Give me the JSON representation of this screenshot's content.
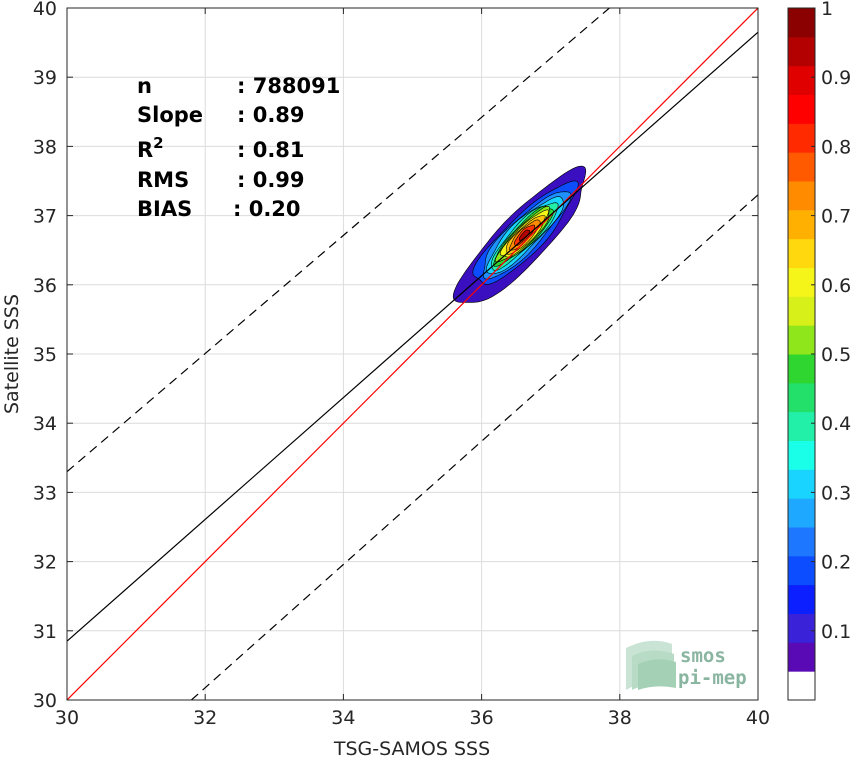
{
  "chart_data": {
    "type": "heatmap",
    "subtype": "2D density contour with regression lines",
    "xlabel": "TSG-SAMOS SSS",
    "ylabel": "Satellite SSS",
    "xlim": [
      30,
      40
    ],
    "ylim": [
      30,
      40
    ],
    "x_ticks": [
      "30",
      "32",
      "34",
      "36",
      "38",
      "40"
    ],
    "y_ticks": [
      "30",
      "31",
      "32",
      "33",
      "34",
      "35",
      "36",
      "37",
      "38",
      "39",
      "40"
    ],
    "grid": true,
    "stats": [
      {
        "label": "n",
        "value": ": 788091"
      },
      {
        "label": "Slope",
        "value": ": 0.89"
      },
      {
        "label": "R",
        "sup": "2",
        "value": ": 0.81"
      },
      {
        "label": "RMS",
        "value": ": 0.99"
      },
      {
        "label": "BIAS",
        "value": ": 0.20"
      }
    ],
    "lines": [
      {
        "kind": "identity",
        "color": "#ff0000",
        "style": "solid",
        "x": [
          30,
          40
        ],
        "y": [
          30,
          40
        ]
      },
      {
        "kind": "regression",
        "color": "#000000",
        "style": "solid",
        "x": [
          30,
          40
        ],
        "y": [
          30.85,
          39.65
        ]
      },
      {
        "kind": "upper-bound",
        "color": "#000000",
        "style": "dashed",
        "x": [
          30,
          37.85
        ],
        "y": [
          33.3,
          40
        ]
      },
      {
        "kind": "lower-bound",
        "color": "#000000",
        "style": "dashed",
        "x": [
          31.8,
          40
        ],
        "y": [
          30,
          37.3
        ]
      }
    ],
    "density": {
      "center": [
        36.62,
        36.72
      ],
      "orientation_deg": 45,
      "levels": [
        {
          "level": 0.05,
          "color": "#3a0fbf",
          "sigma_u": 1.25,
          "sigma_v": 0.34
        },
        {
          "level": 0.15,
          "color": "#0b4dff",
          "sigma_u": 1.0,
          "sigma_v": 0.27
        },
        {
          "level": 0.25,
          "color": "#1e90ff",
          "sigma_u": 0.86,
          "sigma_v": 0.23
        },
        {
          "level": 0.35,
          "color": "#19d4ff",
          "sigma_u": 0.76,
          "sigma_v": 0.2
        },
        {
          "level": 0.45,
          "color": "#23f0a8",
          "sigma_u": 0.66,
          "sigma_v": 0.17
        },
        {
          "level": 0.55,
          "color": "#2fd62f",
          "sigma_u": 0.58,
          "sigma_v": 0.15
        },
        {
          "level": 0.6,
          "color": "#8fe61a",
          "sigma_u": 0.53,
          "sigma_v": 0.135
        },
        {
          "level": 0.65,
          "color": "#f5f51a",
          "sigma_u": 0.46,
          "sigma_v": 0.12
        },
        {
          "level": 0.72,
          "color": "#ffc20d",
          "sigma_u": 0.38,
          "sigma_v": 0.1
        },
        {
          "level": 0.8,
          "color": "#ff8c00",
          "sigma_u": 0.3,
          "sigma_v": 0.08
        },
        {
          "level": 0.88,
          "color": "#ff3300",
          "sigma_u": 0.2,
          "sigma_v": 0.06
        },
        {
          "level": 0.95,
          "color": "#b30000",
          "sigma_u": 0.1,
          "sigma_v": 0.035
        }
      ]
    },
    "colorbar": {
      "range": [
        0,
        1
      ],
      "tick_values": [
        0.1,
        0.2,
        0.3,
        0.4,
        0.5,
        0.6,
        0.7,
        0.8,
        0.9,
        1
      ],
      "tick_labels": [
        "0.1",
        "0.2",
        "0.3",
        "0.4",
        "0.5",
        "0.6",
        "0.7",
        "0.8",
        "0.9",
        "1"
      ],
      "colors": [
        "#ffffff",
        "#5a0ab4",
        "#3a22d8",
        "#0b1fff",
        "#0b4dff",
        "#1e78ff",
        "#1ea8ff",
        "#19d4ff",
        "#19ffe8",
        "#23f0a8",
        "#23e06a",
        "#2fd62f",
        "#8fe61a",
        "#d8f01a",
        "#f5f51a",
        "#ffd80d",
        "#ffb000",
        "#ff8c00",
        "#ff5a00",
        "#ff2a00",
        "#ff0000",
        "#e00000",
        "#b30000",
        "#8b0000"
      ]
    }
  },
  "logo": {
    "line1": "smos",
    "line2": "pi-mep"
  }
}
